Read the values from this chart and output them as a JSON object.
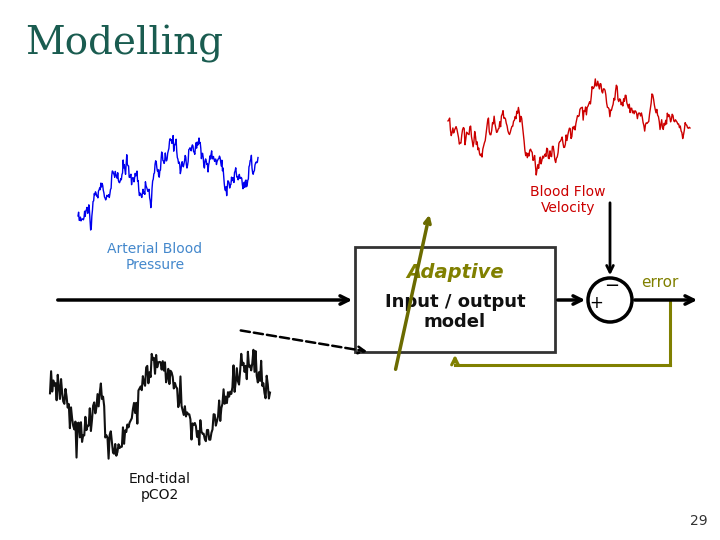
{
  "title": "Modelling",
  "title_color": "#1a5c50",
  "title_fontsize": 28,
  "bg_color": "#ffffff",
  "blue_signal_color": "#0000ee",
  "red_signal_color": "#cc0000",
  "black_signal_color": "#111111",
  "olive_color": "#808000",
  "dark_olive": "#6b6b00",
  "arterial_label": "Arterial Blood\nPressure",
  "arterial_label_color": "#4488cc",
  "endtidal_label": "End-tidal\npCO2",
  "endtidal_label_color": "#111111",
  "bloodflow_label": "Blood Flow\nVelocity",
  "bloodflow_label_color": "#cc0000",
  "adaptive_label": "Adaptive",
  "adaptive_label_color": "#808000",
  "model_label": "Input / output\nmodel",
  "model_label_color": "#111111",
  "error_label": "error",
  "error_label_color": "#808000",
  "page_number": "29",
  "seed_blue": 10,
  "seed_red": 20,
  "seed_black": 30
}
